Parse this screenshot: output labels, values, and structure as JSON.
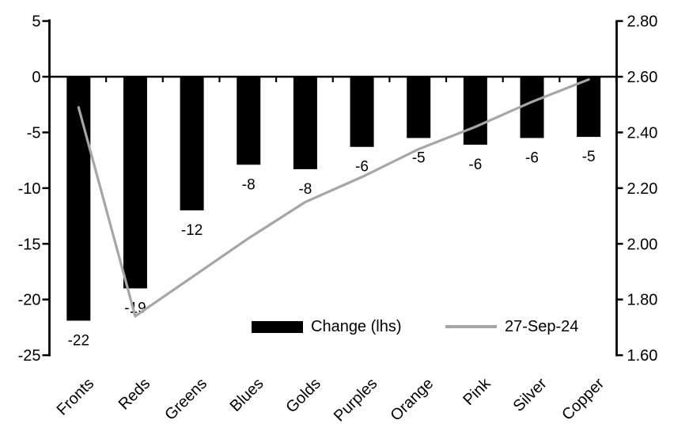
{
  "chart_data": {
    "type": "bar",
    "subtype": "combo-bar-line-dual-axis",
    "title": "",
    "xlabel": "",
    "ylabel": "",
    "grid": false,
    "legend_position": "inside-bottom-center",
    "categories": [
      "Fronts",
      "Reds",
      "Greens",
      "Blues",
      "Golds",
      "Purples",
      "Orange",
      "Pink",
      "Silver",
      "Copper"
    ],
    "series": [
      {
        "name": "Change (lhs)",
        "type": "bar",
        "axis": "left",
        "color": "#000000",
        "values": [
          -22,
          -19,
          -12,
          -8,
          -8,
          -6,
          -5,
          -6,
          -6,
          -5
        ],
        "values_precise": [
          -21.9,
          -19.0,
          -12.0,
          -7.9,
          -8.3,
          -6.3,
          -5.5,
          -6.1,
          -5.5,
          -5.4
        ],
        "data_labels": [
          "-22",
          "-19",
          "-12",
          "-8",
          "-8",
          "-6",
          "-5",
          "-6",
          "-6",
          "-5"
        ]
      },
      {
        "name": "27-Sep-24",
        "type": "line",
        "axis": "right",
        "color": "#a6a6a6",
        "values": [
          2.49,
          1.74,
          1.88,
          2.02,
          2.15,
          2.24,
          2.34,
          2.42,
          2.51,
          2.59
        ]
      }
    ],
    "left_axis": {
      "range": [
        -25,
        5
      ],
      "tick_values": [
        5,
        0,
        -5,
        -10,
        -15,
        -20,
        -25
      ],
      "tick_labels": [
        "5",
        "0",
        "-5",
        "-10",
        "-15",
        "-20",
        "-25"
      ]
    },
    "right_axis": {
      "range": [
        1.6,
        2.8
      ],
      "tick_values": [
        2.8,
        2.6,
        2.4,
        2.2,
        2.0,
        1.8,
        1.6
      ],
      "tick_labels": [
        "2.80",
        "2.60",
        "2.40",
        "2.20",
        "2.00",
        "1.80",
        "1.60"
      ]
    }
  },
  "legend": {
    "bar_label": "Change (lhs)",
    "line_label": "27-Sep-24"
  },
  "colors": {
    "background": "#ffffff",
    "bar": "#000000",
    "line": "#a6a6a6",
    "axis": "#000000",
    "text": "#000000"
  }
}
